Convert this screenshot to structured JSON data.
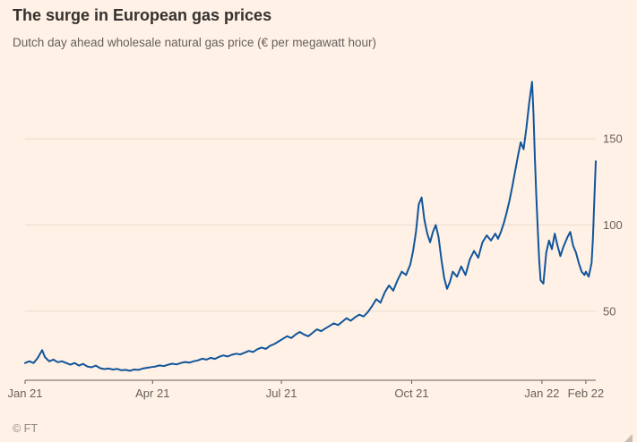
{
  "header": {
    "title": "The surge in European gas prices",
    "subtitle": "Dutch day ahead wholesale natural gas price (€ per megawatt hour)"
  },
  "footer": {
    "source": "© FT"
  },
  "colors": {
    "background": "#fff1e5",
    "title": "#33302e",
    "subtitle": "#66605c",
    "axis": "#66605c",
    "grid": "#e9dbce",
    "line": "#11559b",
    "source": "#8f8a84",
    "resize_handle": "#c9bdb1"
  },
  "chart_data": {
    "type": "line",
    "title": "The surge in European gas prices",
    "subtitle": "Dutch day ahead wholesale natural gas price (€ per megawatt hour)",
    "series_name": "Dutch day ahead wholesale natural gas price",
    "xlabel": "",
    "ylabel": "€ per megawatt hour",
    "x_unit": "days since 1 Jan 2021",
    "x_domain": [
      0,
      403
    ],
    "y_domain": [
      10,
      190
    ],
    "yticks": [
      50,
      100,
      150
    ],
    "xticks": [
      {
        "day": 0,
        "label": "Jan 21"
      },
      {
        "day": 90,
        "label": "Apr 21"
      },
      {
        "day": 181,
        "label": "Jul 21"
      },
      {
        "day": 273,
        "label": "Oct 21"
      },
      {
        "day": 365,
        "label": "Jan 22"
      },
      {
        "day": 396,
        "label": "Feb 22"
      }
    ],
    "grid": true,
    "legend": "none",
    "points": [
      [
        0,
        20
      ],
      [
        3,
        21
      ],
      [
        6,
        20
      ],
      [
        9,
        23
      ],
      [
        12,
        27.5
      ],
      [
        14,
        23.5
      ],
      [
        17,
        21
      ],
      [
        20,
        22
      ],
      [
        23,
        20.5
      ],
      [
        26,
        21
      ],
      [
        29,
        20
      ],
      [
        32,
        19
      ],
      [
        35,
        20
      ],
      [
        38,
        18.5
      ],
      [
        41,
        19.5
      ],
      [
        44,
        18
      ],
      [
        47,
        17.5
      ],
      [
        50,
        18.5
      ],
      [
        53,
        17
      ],
      [
        56,
        16.5
      ],
      [
        59,
        16.8
      ],
      [
        62,
        16.2
      ],
      [
        65,
        16.6
      ],
      [
        68,
        15.8
      ],
      [
        71,
        16
      ],
      [
        74,
        15.5
      ],
      [
        77,
        16.2
      ],
      [
        80,
        16
      ],
      [
        83,
        16.8
      ],
      [
        86,
        17.2
      ],
      [
        89,
        17.6
      ],
      [
        92,
        18
      ],
      [
        95,
        18.6
      ],
      [
        98,
        18.2
      ],
      [
        101,
        19
      ],
      [
        104,
        19.6
      ],
      [
        107,
        19.2
      ],
      [
        110,
        20
      ],
      [
        113,
        20.6
      ],
      [
        116,
        20.2
      ],
      [
        119,
        21
      ],
      [
        122,
        21.5
      ],
      [
        125,
        22.5
      ],
      [
        128,
        22
      ],
      [
        131,
        23
      ],
      [
        134,
        22.4
      ],
      [
        137,
        23.6
      ],
      [
        140,
        24.4
      ],
      [
        143,
        23.8
      ],
      [
        146,
        24.8
      ],
      [
        149,
        25.4
      ],
      [
        152,
        25
      ],
      [
        155,
        26
      ],
      [
        158,
        27
      ],
      [
        161,
        26.4
      ],
      [
        164,
        28
      ],
      [
        167,
        29
      ],
      [
        170,
        28.2
      ],
      [
        173,
        30
      ],
      [
        176,
        31
      ],
      [
        179,
        32.5
      ],
      [
        182,
        34
      ],
      [
        185,
        35.5
      ],
      [
        188,
        34.5
      ],
      [
        191,
        36.5
      ],
      [
        194,
        38
      ],
      [
        197,
        36.5
      ],
      [
        200,
        35.5
      ],
      [
        203,
        37.5
      ],
      [
        206,
        39.5
      ],
      [
        209,
        38.5
      ],
      [
        212,
        40
      ],
      [
        215,
        41.5
      ],
      [
        218,
        43
      ],
      [
        221,
        42
      ],
      [
        224,
        44
      ],
      [
        227,
        46
      ],
      [
        230,
        44.5
      ],
      [
        233,
        46.5
      ],
      [
        236,
        48
      ],
      [
        239,
        47
      ],
      [
        242,
        49.5
      ],
      [
        245,
        53
      ],
      [
        248,
        57
      ],
      [
        251,
        55
      ],
      [
        254,
        61
      ],
      [
        257,
        65
      ],
      [
        260,
        62
      ],
      [
        263,
        68
      ],
      [
        266,
        73
      ],
      [
        269,
        71
      ],
      [
        272,
        77
      ],
      [
        274,
        85
      ],
      [
        276,
        96
      ],
      [
        278,
        112
      ],
      [
        280,
        116
      ],
      [
        282,
        103
      ],
      [
        284,
        95
      ],
      [
        286,
        90
      ],
      [
        288,
        96
      ],
      [
        290,
        100
      ],
      [
        292,
        93
      ],
      [
        294,
        80
      ],
      [
        296,
        69
      ],
      [
        298,
        63
      ],
      [
        300,
        67
      ],
      [
        302,
        73
      ],
      [
        305,
        70
      ],
      [
        308,
        76
      ],
      [
        311,
        71
      ],
      [
        314,
        80
      ],
      [
        317,
        85
      ],
      [
        320,
        81
      ],
      [
        323,
        90
      ],
      [
        326,
        94
      ],
      [
        329,
        91
      ],
      [
        332,
        95
      ],
      [
        334,
        92
      ],
      [
        336,
        96
      ],
      [
        338,
        101
      ],
      [
        340,
        107
      ],
      [
        342,
        114
      ],
      [
        344,
        122
      ],
      [
        346,
        131
      ],
      [
        348,
        140
      ],
      [
        350,
        148
      ],
      [
        352,
        144
      ],
      [
        354,
        156
      ],
      [
        356,
        171
      ],
      [
        358,
        183
      ],
      [
        359,
        164
      ],
      [
        360,
        139
      ],
      [
        361,
        117
      ],
      [
        362,
        98
      ],
      [
        363,
        80
      ],
      [
        364,
        68
      ],
      [
        366,
        66
      ],
      [
        368,
        84
      ],
      [
        370,
        91
      ],
      [
        372,
        86
      ],
      [
        374,
        95
      ],
      [
        376,
        88
      ],
      [
        378,
        82
      ],
      [
        380,
        87
      ],
      [
        383,
        93
      ],
      [
        385,
        96
      ],
      [
        387,
        88
      ],
      [
        389,
        84
      ],
      [
        391,
        78
      ],
      [
        393,
        73
      ],
      [
        395,
        71
      ],
      [
        396,
        73
      ],
      [
        398,
        70
      ],
      [
        400,
        78
      ],
      [
        401,
        92
      ],
      [
        402,
        115
      ],
      [
        403,
        137
      ]
    ]
  }
}
